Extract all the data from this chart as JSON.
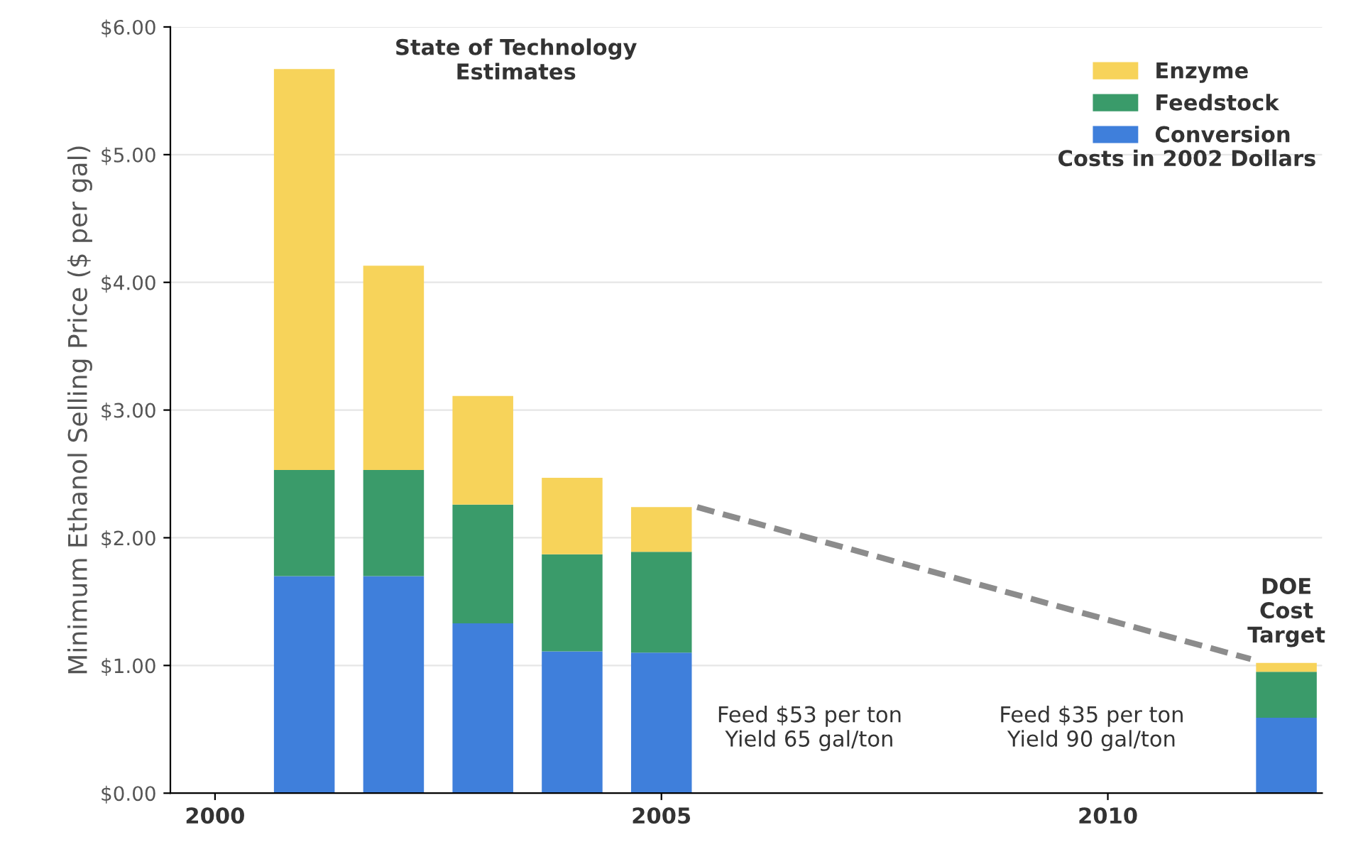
{
  "chart_data": {
    "type": "bar",
    "stacked": true,
    "ylabel": "Minimum Ethanol Selling Price ($ per gal)",
    "x": [
      2001,
      2002,
      2003,
      2004,
      2005,
      2012
    ],
    "series": [
      {
        "name": "Conversion",
        "color": "#3f7fdb",
        "values": [
          1.7,
          1.7,
          1.33,
          1.11,
          1.1,
          0.59
        ]
      },
      {
        "name": "Feedstock",
        "color": "#3a9b6a",
        "values": [
          0.83,
          0.83,
          0.93,
          0.76,
          0.79,
          0.36
        ]
      },
      {
        "name": "Enzyme",
        "color": "#f7d35a",
        "values": [
          3.14,
          1.6,
          0.85,
          0.6,
          0.35,
          0.07
        ]
      },
      {
        "type": "line",
        "color": "#8c8c8c",
        "line_style": "dashed",
        "x": [
          2005.4,
          2011.6
        ],
        "values": [
          2.24,
          1.05
        ]
      }
    ],
    "xlim": [
      1999.5,
      2012.4
    ],
    "xticks": [
      2000,
      2005,
      2010
    ],
    "ylim": [
      0,
      6
    ],
    "yticks": [
      {
        "value": 0,
        "label": "$0.00"
      },
      {
        "value": 1,
        "label": "$1.00"
      },
      {
        "value": 2,
        "label": "$2.00"
      },
      {
        "value": 3,
        "label": "$3.00"
      },
      {
        "value": 4,
        "label": "$4.00"
      },
      {
        "value": 5,
        "label": "$5.00"
      },
      {
        "value": 6,
        "label": "$6.00"
      }
    ],
    "grid": "y",
    "legend": "top right",
    "annotations": [
      "State of Technology\nEstimates",
      "Costs in 2002 Dollars",
      {
        "text": "DOE\nCost\nTarget",
        "x": 2012,
        "y": 1.02
      },
      "Feed $53 per ton\nYield 65 gal/ton",
      "Feed $35 per ton\nYield 90 gal/ton"
    ]
  }
}
